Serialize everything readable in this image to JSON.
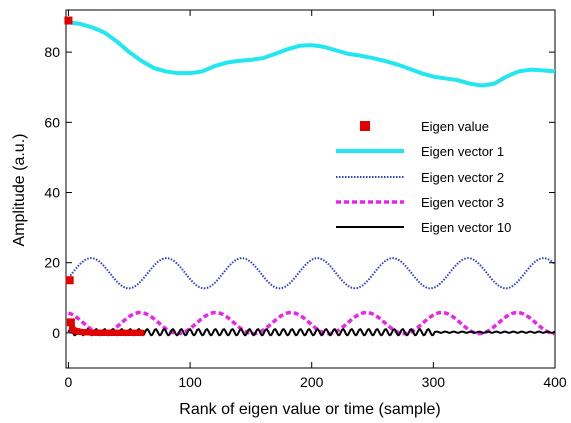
{
  "chart_data": {
    "type": "line",
    "title": "",
    "xlabel": "Rank of eigen value or time (sample)",
    "ylabel": "Amplitude (a.u.)",
    "xlim": [
      -2,
      400
    ],
    "ylim": [
      -10,
      92
    ],
    "xticks": [
      0,
      100,
      200,
      300,
      400
    ],
    "yticks": [
      0,
      20,
      40,
      60,
      80
    ],
    "grid": false,
    "legend_position": "right",
    "eigen_values": {
      "name": "Eigen value",
      "color": "#e00000",
      "x": [
        0,
        1,
        2,
        3,
        4,
        5,
        6,
        7,
        8,
        9,
        10,
        11,
        12,
        13,
        14,
        15,
        16,
        17,
        18,
        19,
        20,
        21,
        22,
        23,
        24,
        25,
        26,
        27,
        28,
        29,
        30,
        31,
        32,
        33,
        34,
        35,
        36,
        37,
        38,
        39,
        40,
        41,
        42,
        43,
        44,
        45,
        46,
        47,
        48,
        49,
        50,
        51,
        52,
        53,
        54,
        55,
        56,
        57,
        58,
        59,
        60
      ],
      "y": [
        89,
        15,
        3,
        1.2,
        0.8,
        0.6,
        0.5,
        0.4,
        0.35,
        0.3,
        0.28,
        0.25,
        0.22,
        0.2,
        0.18,
        0.16,
        0.14,
        0.12,
        0.11,
        0.1,
        0.09,
        0.08,
        0.07,
        0.06,
        0.05,
        0.05,
        0.04,
        0.04,
        0.03,
        0.03,
        0.03,
        0.02,
        0.02,
        0.02,
        0.02,
        0.02,
        0.01,
        0.01,
        0.01,
        0.01,
        0.01,
        0.01,
        0.01,
        0.01,
        0.01,
        0.01,
        0.01,
        0.01,
        0.01,
        0.01,
        0.01,
        0.01,
        0.01,
        0.01,
        0.01,
        0.01,
        0.01,
        0.01,
        0.01,
        0.01,
        0.01
      ]
    },
    "series": [
      {
        "name": "Eigen vector 1",
        "color": "#22e6f0",
        "style": "solid",
        "x": [
          0,
          10,
          20,
          30,
          40,
          50,
          60,
          70,
          80,
          90,
          100,
          110,
          120,
          130,
          140,
          150,
          160,
          170,
          180,
          190,
          200,
          210,
          220,
          230,
          240,
          250,
          260,
          270,
          280,
          290,
          300,
          310,
          320,
          330,
          340,
          350,
          360,
          370,
          380,
          390,
          400
        ],
        "y": [
          88.5,
          88,
          87,
          85.5,
          83,
          80,
          77.5,
          75.5,
          74.5,
          74,
          74,
          74.5,
          76,
          77,
          77.5,
          77.8,
          78.3,
          79.5,
          80.8,
          81.8,
          82,
          81.5,
          80.5,
          79.5,
          79,
          78.3,
          77.5,
          76.5,
          75.3,
          74,
          73,
          72.5,
          72,
          71,
          70.5,
          71,
          73,
          74.5,
          75,
          74.8,
          74.5
        ]
      },
      {
        "name": "Eigen vector 2",
        "color": "#2a3fd6",
        "style": "dotted",
        "sin": {
          "offset": 17,
          "amplitude": 4.3,
          "period": 62,
          "phase": -0.05,
          "x_start": 0,
          "x_end": 400
        }
      },
      {
        "name": "Eigen vector 3",
        "color": "#ee22ee",
        "style": "dashed",
        "sin": {
          "offset": 2.8,
          "amplitude": 3,
          "period": 62,
          "phase": 0.3,
          "x_start": 0,
          "x_end": 400
        }
      },
      {
        "name": "Eigen vector 10",
        "color": "#000000",
        "style": "solid",
        "sin": {
          "offset": 0.2,
          "amplitude": 0.9,
          "period": 7,
          "phase": 0,
          "x_start": 0,
          "x_end": 400,
          "damp_after": 300
        }
      }
    ]
  }
}
